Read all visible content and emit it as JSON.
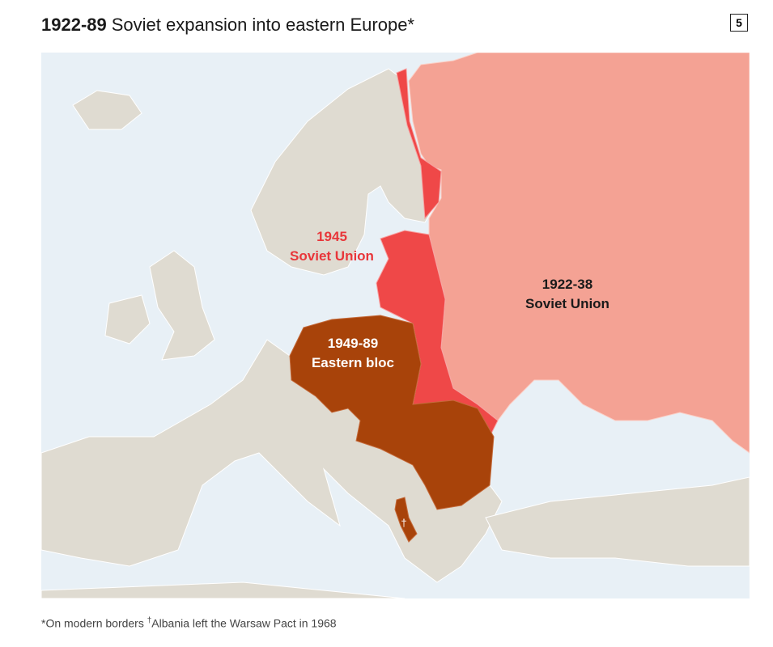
{
  "header": {
    "title_bold": "1922-89",
    "title_rest": "Soviet expansion into eastern Europe*",
    "badge": "5"
  },
  "map": {
    "labels": [
      {
        "year": "1945",
        "name": "Soviet Union"
      },
      {
        "year": "1922-38",
        "name": "Soviet Union"
      },
      {
        "year": "1949-89",
        "name": "Eastern bloc"
      }
    ],
    "albania_mark": "†"
  },
  "footnote": {
    "note": "*On modern borders",
    "dagger": "†",
    "text": "Albania left the Warsaw Pact in 1968"
  }
}
